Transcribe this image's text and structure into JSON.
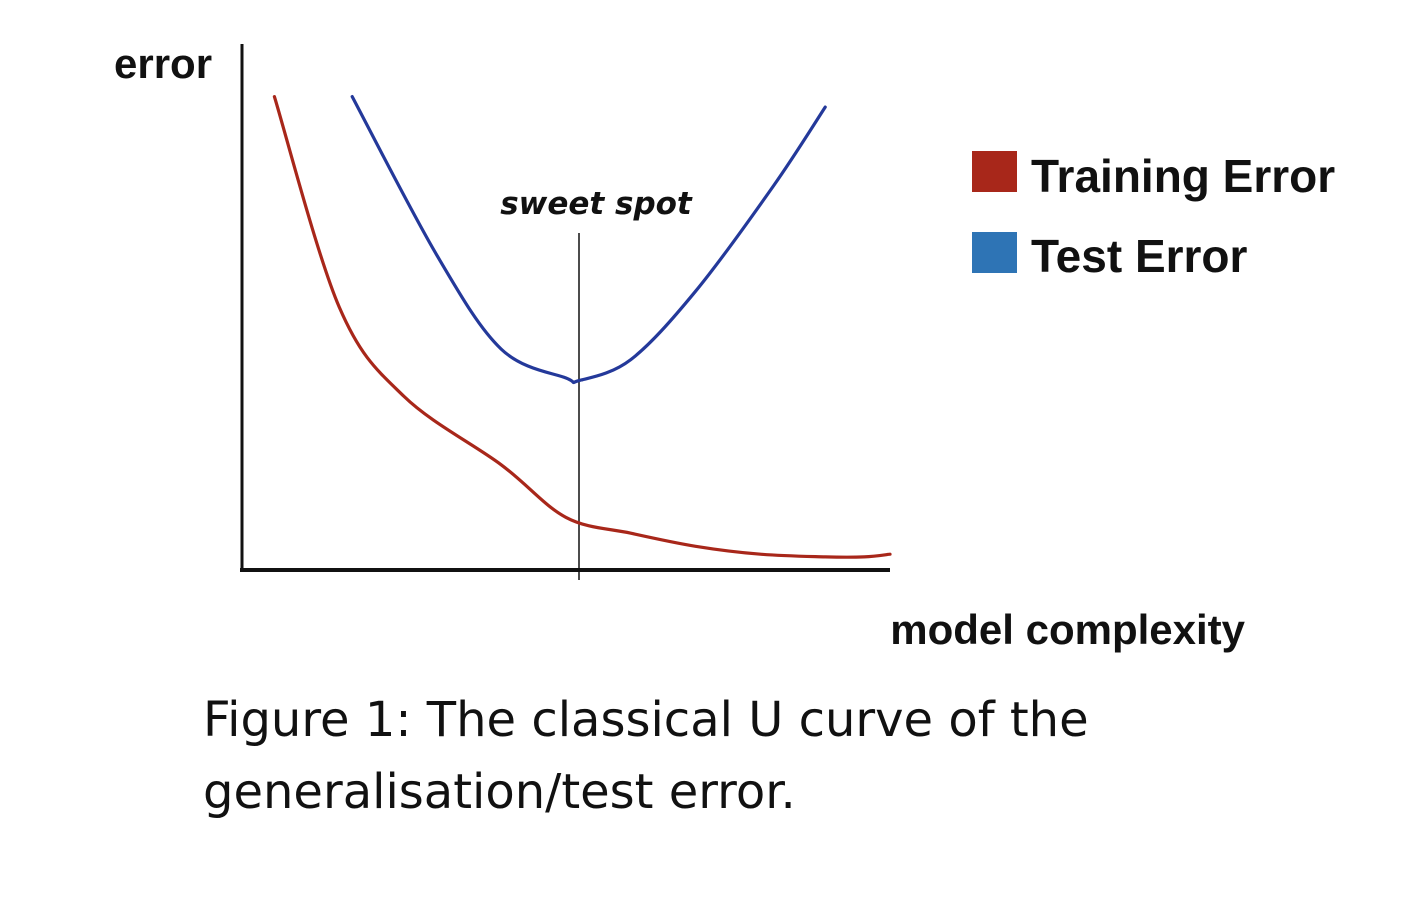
{
  "chart_data": {
    "type": "line",
    "ylabel": "error",
    "xlabel": "model complexity",
    "grid": false,
    "legend_placement": "right",
    "series": [
      {
        "name": "Training Error",
        "color": "#a8271a",
        "x": [
          0.05,
          0.15,
          0.25,
          0.4,
          0.5,
          0.6,
          0.7,
          0.8,
          0.9,
          0.96,
          1.0
        ],
        "y": [
          0.9,
          0.5,
          0.33,
          0.2,
          0.1,
          0.07,
          0.045,
          0.03,
          0.025,
          0.025,
          0.03
        ]
      },
      {
        "name": "Test Error",
        "color": "#2e74b5",
        "line_color": "#24399a",
        "x": [
          0.17,
          0.3,
          0.4,
          0.5,
          0.52,
          0.6,
          0.7,
          0.82,
          0.9
        ],
        "y": [
          0.9,
          0.6,
          0.42,
          0.365,
          0.36,
          0.4,
          0.53,
          0.73,
          0.88
        ]
      }
    ],
    "annotations": [
      {
        "text": "sweet spot",
        "x": 0.52
      }
    ]
  },
  "caption": "Figure 1: The classical U curve of the generalisation/test error."
}
